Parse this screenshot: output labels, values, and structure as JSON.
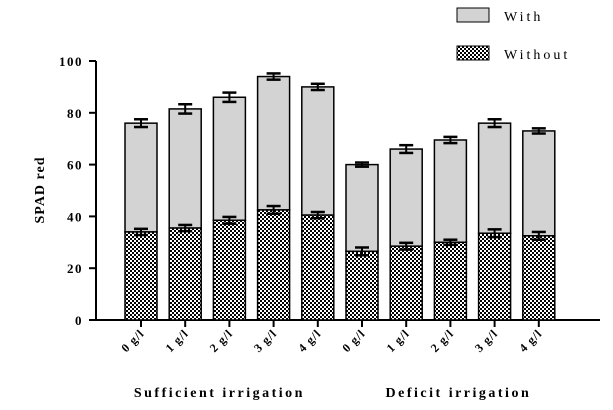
{
  "chart_data": {
    "type": "bar",
    "stacked": true,
    "categories": [
      "0 g/l",
      "1 g/l",
      "2 g/l",
      "3 g/l",
      "4 g/l",
      "0 g/l",
      "1 g/l",
      "2 g/l",
      "3 g/l",
      "4 g/l"
    ],
    "groups": [
      {
        "label": "Sufficient irrigation",
        "category_indices": [
          0,
          1,
          2,
          3,
          4
        ]
      },
      {
        "label": "Deficit irrigation",
        "category_indices": [
          5,
          6,
          7,
          8,
          9
        ]
      }
    ],
    "series": [
      {
        "name": "Without",
        "pattern": "checkerboard",
        "color": "#000000",
        "values": [
          34,
          35.5,
          38.5,
          42.5,
          40.5,
          26.5,
          28.5,
          30,
          33.5,
          32.5
        ],
        "errors": [
          1.2,
          1.2,
          1.3,
          1.5,
          1.2,
          1.5,
          1.3,
          1.0,
          1.5,
          1.5
        ]
      },
      {
        "name": "With",
        "pattern": "solid",
        "color": "#d3d3d3",
        "totals": [
          76,
          81.5,
          86,
          94,
          90,
          60,
          66,
          69.5,
          76,
          73
        ],
        "total_errors": [
          1.5,
          1.8,
          1.8,
          1.2,
          1.2,
          0.8,
          1.5,
          1.2,
          1.5,
          1.0
        ]
      }
    ],
    "ylabel": "SPAD red",
    "xlabel": "",
    "ylim": [
      0,
      100
    ],
    "yticks": [
      0,
      20,
      40,
      60,
      80,
      100
    ],
    "legend": {
      "position": "top-right",
      "order": [
        "With",
        "Without"
      ]
    },
    "grid": false
  }
}
